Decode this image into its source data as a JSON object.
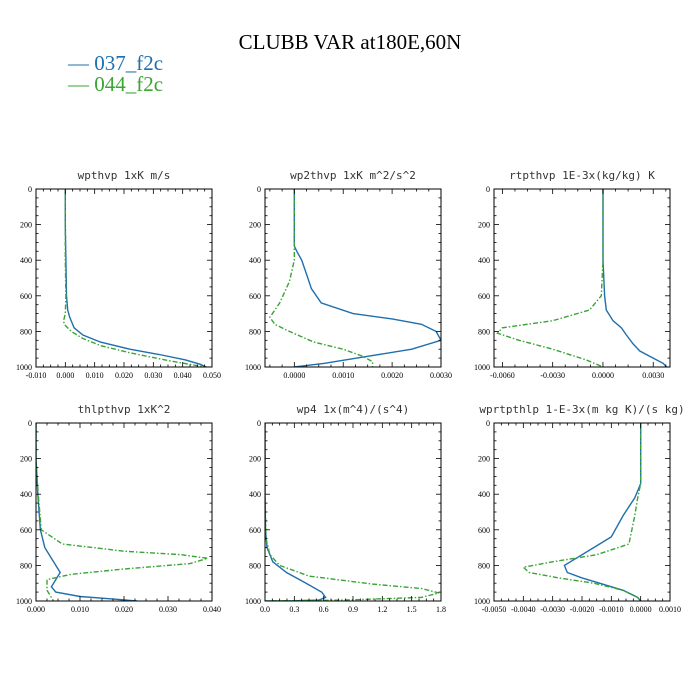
{
  "figure": {
    "title": "CLUBB VAR at180E,60N",
    "legend": [
      {
        "label": "— 037_f2c",
        "color": "#1f6fad"
      },
      {
        "label": "— 044_f2c",
        "color": "#3aa435"
      }
    ]
  },
  "chart_data": [
    {
      "type": "line",
      "title": "wpthvp  1xK m/s",
      "xlim": [
        -0.01,
        0.05
      ],
      "ylim": [
        1000,
        0
      ],
      "xticks": [
        "-0.010",
        "0.000",
        "0.010",
        "0.020",
        "0.030",
        "0.040",
        "0.050"
      ],
      "xtick_values": [
        -0.01,
        0.0,
        0.01,
        0.02,
        0.03,
        0.04,
        0.05
      ],
      "yticks": [
        "0",
        "200",
        "400",
        "600",
        "800",
        "1000"
      ],
      "ytick_values": [
        0,
        200,
        400,
        600,
        800,
        1000
      ],
      "series": [
        {
          "name": "037_f2c",
          "color": "#1f6fad",
          "dashed": false,
          "x": [
            0.0,
            0.0,
            0.0002,
            0.0004,
            0.0008,
            0.0015,
            0.003,
            0.006,
            0.012,
            0.022,
            0.032,
            0.041,
            0.046,
            0.048
          ],
          "y": [
            0,
            200,
            400,
            600,
            680,
            720,
            780,
            820,
            860,
            900,
            930,
            960,
            985,
            1000
          ]
        },
        {
          "name": "044_f2c",
          "color": "#3aa435",
          "dashed": true,
          "x": [
            0.0,
            0.0,
            0.0,
            0.0002,
            0.0,
            -0.0006,
            -0.0004,
            0.002,
            0.006,
            0.012,
            0.022,
            0.034,
            0.044,
            0.048
          ],
          "y": [
            0,
            200,
            400,
            600,
            700,
            740,
            760,
            800,
            840,
            880,
            920,
            960,
            990,
            1000
          ]
        }
      ]
    },
    {
      "type": "line",
      "title": "wp2thvp  1xK m^2/s^2",
      "xlim": [
        -0.0006,
        0.003
      ],
      "ylim": [
        1000,
        0
      ],
      "xticks": [
        "0.0000",
        "0.0010",
        "0.0020",
        "0.0030"
      ],
      "xtick_values": [
        0.0,
        0.001,
        0.002,
        0.003
      ],
      "yticks": [
        "0",
        "200",
        "400",
        "600",
        "800",
        "1000"
      ],
      "ytick_values": [
        0,
        200,
        400,
        600,
        800,
        1000
      ],
      "series": [
        {
          "name": "037_f2c",
          "color": "#1f6fad",
          "dashed": false,
          "x": [
            0.0,
            0.0,
            0.0,
            5e-05,
            0.00015,
            0.00025,
            0.00035,
            0.00055,
            0.0012,
            0.002,
            0.0026,
            0.0029,
            0.003,
            0.0024,
            0.0015,
            0.0006,
            0.0
          ],
          "y": [
            0,
            200,
            320,
            350,
            400,
            480,
            560,
            640,
            700,
            730,
            760,
            800,
            850,
            900,
            940,
            980,
            1000
          ]
        },
        {
          "name": "044_f2c",
          "color": "#3aa435",
          "dashed": true,
          "x": [
            0.0,
            0.0,
            0.0,
            -0.0001,
            -0.0003,
            -0.0005,
            -0.0004,
            -0.0001,
            0.0004,
            0.001,
            0.0014,
            0.0016,
            0.0016
          ],
          "y": [
            0,
            200,
            400,
            520,
            640,
            720,
            760,
            800,
            860,
            900,
            940,
            970,
            1000
          ]
        }
      ]
    },
    {
      "type": "line",
      "title": "rtpthvp  1E-3x(kg/kg) K",
      "xlim": [
        -0.0065,
        0.004
      ],
      "ylim": [
        1000,
        0
      ],
      "xticks": [
        "-0.0060",
        "-0.0030",
        "0.0000",
        "0.0030"
      ],
      "xtick_values": [
        -0.006,
        -0.003,
        0.0,
        0.003
      ],
      "yticks": [
        "0",
        "200",
        "400",
        "600",
        "800",
        "1000"
      ],
      "ytick_values": [
        0,
        200,
        400,
        600,
        800,
        1000
      ],
      "series": [
        {
          "name": "037_f2c",
          "color": "#1f6fad",
          "dashed": false,
          "x": [
            0.0,
            0.0,
            0.0,
            0.0001,
            0.0002,
            0.0006,
            0.0011,
            0.0014,
            0.0018,
            0.0022,
            0.003,
            0.0036,
            0.0038
          ],
          "y": [
            0,
            200,
            400,
            600,
            680,
            740,
            780,
            820,
            870,
            910,
            950,
            980,
            1000
          ]
        },
        {
          "name": "044_f2c",
          "color": "#3aa435",
          "dashed": true,
          "x": [
            0.0,
            0.0,
            0.0,
            -0.0001,
            -0.0008,
            -0.003,
            -0.006,
            -0.0063,
            -0.005,
            -0.003,
            -0.001,
            0.0
          ],
          "y": [
            0,
            200,
            400,
            600,
            680,
            740,
            780,
            810,
            850,
            900,
            960,
            1000
          ]
        }
      ]
    },
    {
      "type": "line",
      "title": "thlpthvp  1xK^2",
      "xlim": [
        0.0,
        0.04
      ],
      "ylim": [
        1000,
        0
      ],
      "xticks": [
        "0.000",
        "0.010",
        "0.020",
        "0.030",
        "0.040"
      ],
      "xtick_values": [
        0.0,
        0.01,
        0.02,
        0.03,
        0.04
      ],
      "yticks": [
        "0",
        "200",
        "400",
        "600",
        "800",
        "1000"
      ],
      "ytick_values": [
        0,
        200,
        400,
        600,
        800,
        1000
      ],
      "series": [
        {
          "name": "037_f2c",
          "color": "#1f6fad",
          "dashed": false,
          "x": [
            0.0,
            0.0,
            0.0004,
            0.001,
            0.002,
            0.0045,
            0.0055,
            0.0045,
            0.0035,
            0.0045,
            0.01,
            0.018,
            0.023
          ],
          "y": [
            0,
            200,
            400,
            600,
            700,
            800,
            840,
            880,
            920,
            950,
            975,
            990,
            1000
          ]
        },
        {
          "name": "044_f2c",
          "color": "#3aa435",
          "dashed": true,
          "x": [
            0.0,
            0.0,
            0.0005,
            0.0012,
            0.006,
            0.02,
            0.033,
            0.039,
            0.035,
            0.02,
            0.008,
            0.0025,
            0.0025,
            0.004
          ],
          "y": [
            0,
            200,
            400,
            600,
            680,
            720,
            740,
            760,
            790,
            820,
            850,
            880,
            940,
            1000
          ]
        }
      ]
    },
    {
      "type": "line",
      "title": "wp4  1x(m^4)/(s^4)",
      "xlim": [
        0.0,
        1.8
      ],
      "ylim": [
        1000,
        0
      ],
      "xticks": [
        "0.0",
        "0.3",
        "0.6",
        "0.9",
        "1.2",
        "1.5",
        "1.8"
      ],
      "xtick_values": [
        0.0,
        0.3,
        0.6,
        0.9,
        1.2,
        1.5,
        1.8
      ],
      "yticks": [
        "0",
        "200",
        "400",
        "600",
        "800",
        "1000"
      ],
      "ytick_values": [
        0,
        200,
        400,
        600,
        800,
        1000
      ],
      "series": [
        {
          "name": "037_f2c",
          "color": "#1f6fad",
          "dashed": false,
          "x": [
            0.0,
            0.0,
            0.005,
            0.02,
            0.08,
            0.22,
            0.42,
            0.58,
            0.62,
            0.55,
            0.25,
            0.0
          ],
          "y": [
            0,
            400,
            600,
            700,
            780,
            840,
            900,
            950,
            980,
            995,
            1000,
            1000
          ]
        },
        {
          "name": "044_f2c",
          "color": "#3aa435",
          "dashed": true,
          "x": [
            0.0,
            0.0,
            0.01,
            0.05,
            0.15,
            0.45,
            1.1,
            1.6,
            1.78,
            1.6,
            0.8,
            0.0
          ],
          "y": [
            0,
            400,
            650,
            740,
            800,
            860,
            905,
            930,
            955,
            980,
            995,
            1000
          ]
        }
      ]
    },
    {
      "type": "line",
      "title": "wprtpthlp  1-E-3x(m kg K)/(s kg)",
      "xlim": [
        -0.005,
        0.001
      ],
      "ylim": [
        1000,
        0
      ],
      "xticks": [
        "-0.0050",
        "-0.0040",
        "-0.0030",
        "-0.0020",
        "-0.0010",
        "0.0000",
        "0.0010"
      ],
      "xtick_values": [
        -0.005,
        -0.004,
        -0.003,
        -0.002,
        -0.001,
        0.0,
        0.001
      ],
      "yticks": [
        "0",
        "200",
        "400",
        "600",
        "800",
        "1000"
      ],
      "ytick_values": [
        0,
        200,
        400,
        600,
        800,
        1000
      ],
      "series": [
        {
          "name": "037_f2c",
          "color": "#1f6fad",
          "dashed": false,
          "x": [
            0.0,
            0.0,
            -0.0002,
            -0.0006,
            -0.001,
            -0.0016,
            -0.0022,
            -0.0026,
            -0.0025,
            -0.002,
            -0.0014,
            -0.0006,
            -0.0001,
            0.0
          ],
          "y": [
            0,
            340,
            420,
            520,
            640,
            700,
            760,
            800,
            840,
            870,
            900,
            940,
            980,
            1000
          ]
        },
        {
          "name": "044_f2c",
          "color": "#3aa435",
          "dashed": true,
          "x": [
            0.0,
            0.0,
            -0.0001,
            -0.0002,
            -0.0004,
            -0.0015,
            -0.003,
            -0.004,
            -0.0038,
            -0.0028,
            -0.0016,
            -0.0006,
            -0.0001,
            0.0
          ],
          "y": [
            0,
            340,
            420,
            520,
            680,
            740,
            780,
            810,
            840,
            870,
            900,
            940,
            980,
            1000
          ]
        }
      ]
    }
  ]
}
